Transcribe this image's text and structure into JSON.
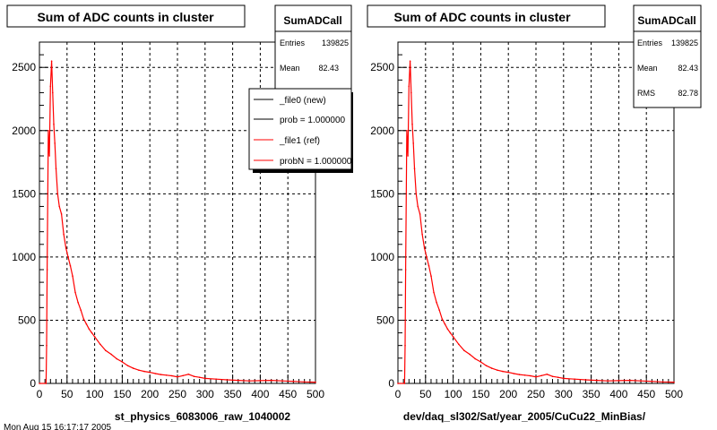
{
  "colors": {
    "axis": "#000000",
    "grid": "#000000",
    "new_series": "#000000",
    "ref_series": "#ff0000",
    "background": "#ffffff"
  },
  "footer_fragment": "Mon Aug 15 16:17:17 2005",
  "chart_data": [
    {
      "type": "line",
      "title": "Sum of ADC counts in cluster",
      "xlabel": "st_physics_6083006_raw_1040002",
      "ylabel": "",
      "xlim": [
        0,
        500
      ],
      "ylim": [
        0,
        2700
      ],
      "x_ticks": [
        "0",
        "50",
        "100",
        "150",
        "200",
        "250",
        "300",
        "350",
        "400",
        "450",
        "500"
      ],
      "y_ticks": [
        "0",
        "500",
        "1000",
        "1500",
        "2000",
        "2500"
      ],
      "grid": true,
      "log_scale": false,
      "stats": {
        "name": "SumADCall",
        "rows": [
          {
            "label": "Entries",
            "value": "139825"
          },
          {
            "label": "Mean",
            "value": "82.43"
          }
        ]
      },
      "legend": {
        "placement": "top-right",
        "entries": [
          {
            "label": "_file0 (new)",
            "color": "#000000"
          },
          {
            "label": "prob = 1.000000",
            "color": "#000000"
          },
          {
            "label": "_file1 (ref)",
            "color": "#ff0000"
          },
          {
            "label": "probN = 1.000000",
            "color": "#ff0000"
          }
        ]
      },
      "series": [
        {
          "color": "#ff0000",
          "x": [
            0,
            12,
            13,
            14,
            16,
            18,
            20,
            22,
            24,
            26,
            28,
            30,
            33,
            36,
            40,
            44,
            48,
            52,
            56,
            60,
            65,
            70,
            75,
            80,
            85,
            90,
            95,
            100,
            110,
            120,
            130,
            140,
            150,
            160,
            170,
            180,
            190,
            200,
            210,
            220,
            230,
            240,
            250,
            260,
            270,
            280,
            290,
            300,
            320,
            340,
            360,
            380,
            400,
            420,
            440,
            460,
            480,
            500
          ],
          "y": [
            0,
            0,
            300,
            900,
            2000,
            1800,
            2350,
            2550,
            2300,
            2050,
            1900,
            1700,
            1500,
            1400,
            1340,
            1180,
            1070,
            1000,
            930,
            850,
            720,
            640,
            580,
            510,
            470,
            430,
            400,
            370,
            310,
            260,
            230,
            195,
            170,
            140,
            120,
            105,
            95,
            88,
            78,
            70,
            65,
            60,
            52,
            62,
            72,
            55,
            48,
            40,
            34,
            28,
            24,
            20,
            22,
            24,
            20,
            16,
            12,
            10
          ]
        }
      ]
    },
    {
      "type": "line",
      "title": "Sum of ADC counts in cluster",
      "xlabel": "dev/daq_sl302/Sat/year_2005/CuCu22_MinBias/",
      "ylabel": "",
      "xlim": [
        0,
        500
      ],
      "ylim": [
        0,
        2700
      ],
      "x_ticks": [
        "0",
        "50",
        "100",
        "150",
        "200",
        "250",
        "300",
        "350",
        "400",
        "450",
        "500"
      ],
      "y_ticks": [
        "0",
        "500",
        "1000",
        "1500",
        "2000",
        "2500"
      ],
      "grid": true,
      "log_scale": false,
      "stats": {
        "name": "SumADCall",
        "rows": [
          {
            "label": "Entries",
            "value": "139825"
          },
          {
            "label": "Mean",
            "value": "82.43"
          },
          {
            "label": "RMS",
            "value": "82.78"
          }
        ]
      },
      "series": [
        {
          "color": "#ff0000",
          "x": [
            0,
            12,
            13,
            14,
            16,
            18,
            20,
            22,
            24,
            26,
            28,
            30,
            33,
            36,
            40,
            44,
            48,
            52,
            56,
            60,
            65,
            70,
            75,
            80,
            85,
            90,
            95,
            100,
            110,
            120,
            130,
            140,
            150,
            160,
            170,
            180,
            190,
            200,
            210,
            220,
            230,
            240,
            250,
            260,
            270,
            280,
            290,
            300,
            320,
            340,
            360,
            380,
            400,
            420,
            440,
            460,
            480,
            500
          ],
          "y": [
            0,
            0,
            300,
            900,
            2000,
            1800,
            2350,
            2550,
            2300,
            2050,
            1900,
            1700,
            1500,
            1400,
            1340,
            1180,
            1070,
            1000,
            930,
            850,
            720,
            640,
            580,
            510,
            470,
            430,
            400,
            370,
            310,
            260,
            230,
            195,
            170,
            140,
            120,
            105,
            95,
            88,
            78,
            70,
            65,
            60,
            52,
            62,
            72,
            55,
            48,
            40,
            34,
            28,
            24,
            20,
            22,
            24,
            20,
            16,
            12,
            10
          ]
        }
      ]
    }
  ]
}
